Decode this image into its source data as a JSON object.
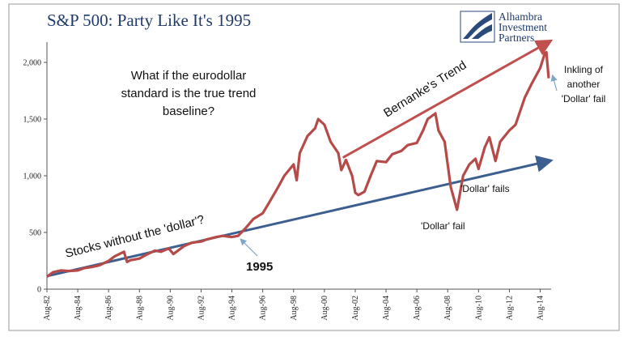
{
  "title": "S&P 500: Party Like It's 1995",
  "logo": {
    "line1": "Alhambra",
    "line2": "Investment",
    "line3": "Partners"
  },
  "annotations": {
    "question": [
      "What if the eurodollar",
      "standard is the true trend",
      "baseline?"
    ],
    "bernanke": "Bernanke's Trend",
    "stocks": "Stocks without the 'dollar'?",
    "year": "1995",
    "fails": "'Dollar' fails",
    "fail": "'Dollar' fail",
    "inkling": [
      "Inkling of",
      "another",
      "'Dollar' fail"
    ]
  },
  "colors": {
    "series": "#b64a48",
    "trend_low": "#3c5f8f",
    "trend_high": "#c0504d",
    "pointer_arrow": "#7fa6c9",
    "title": "#1f3a6b"
  },
  "chart_data": {
    "type": "line",
    "title": "S&P 500: Party Like It's 1995",
    "xlabel": "",
    "ylabel": "",
    "xlim": [
      1982.6,
      2015.15
    ],
    "ylim": [
      0,
      2250
    ],
    "yticks": [
      0,
      500,
      1000,
      1500,
      2000
    ],
    "ytick_labels": [
      "0",
      "500",
      "1,000",
      "1,500",
      "2,000"
    ],
    "xticks": [
      1982.6,
      1984.6,
      1986.6,
      1988.6,
      1990.6,
      1992.6,
      1994.6,
      1996.6,
      1998.6,
      2000.6,
      2002.6,
      2004.6,
      2006.6,
      2008.6,
      2010.6,
      2012.6,
      2014.6
    ],
    "xtick_labels": [
      "Aug-82",
      "Aug-84",
      "Aug-86",
      "Aug-88",
      "Aug-90",
      "Aug-92",
      "Aug-94",
      "Aug-96",
      "Aug-98",
      "Aug-00",
      "Aug-02",
      "Aug-04",
      "Aug-06",
      "Aug-08",
      "Aug-10",
      "Aug-12",
      "Aug-14"
    ],
    "grid": false,
    "legend": "none",
    "series": [
      {
        "x": [
          1982.6,
          1983.0,
          1983.5,
          1984.0,
          1984.6,
          1985.0,
          1985.5,
          1986.0,
          1986.6,
          1987.0,
          1987.6,
          1987.8,
          1988.0,
          1988.6,
          1989.0,
          1989.6,
          1990.0,
          1990.5,
          1990.8,
          1991.0,
          1991.5,
          1992.0,
          1992.6,
          1993.0,
          1993.6,
          1994.0,
          1994.6,
          1995.0,
          1995.5,
          1996.0,
          1996.6,
          1997.0,
          1997.6,
          1998.0,
          1998.6,
          1998.8,
          1999.0,
          1999.5,
          2000.0,
          2000.2,
          2000.6,
          2001.0,
          2001.5,
          2001.7,
          2002.0,
          2002.4,
          2002.6,
          2002.8,
          2003.2,
          2003.6,
          2004.0,
          2004.6,
          2005.0,
          2005.6,
          2006.0,
          2006.6,
          2007.0,
          2007.3,
          2007.8,
          2008.0,
          2008.4,
          2008.8,
          2009.2,
          2009.6,
          2010.0,
          2010.4,
          2010.6,
          2011.0,
          2011.3,
          2011.7,
          2012.0,
          2012.6,
          2013.0,
          2013.6,
          2014.0,
          2014.6,
          2014.9,
          2015.0,
          2015.15
        ],
        "values": [
          110,
          150,
          165,
          160,
          165,
          185,
          195,
          210,
          250,
          290,
          330,
          240,
          255,
          270,
          300,
          340,
          330,
          360,
          310,
          330,
          380,
          410,
          420,
          440,
          460,
          470,
          460,
          470,
          540,
          620,
          670,
          760,
          900,
          1000,
          1100,
          960,
          1200,
          1350,
          1420,
          1500,
          1450,
          1300,
          1200,
          1050,
          1140,
          1000,
          850,
          830,
          860,
          1000,
          1130,
          1120,
          1190,
          1220,
          1270,
          1290,
          1400,
          1500,
          1550,
          1400,
          1300,
          900,
          700,
          1000,
          1100,
          1150,
          1060,
          1250,
          1340,
          1130,
          1300,
          1400,
          1450,
          1690,
          1800,
          1950,
          2080,
          2090,
          1860
        ]
      }
    ],
    "trend_lines": [
      {
        "name": "Stocks without the 'dollar'?",
        "x": [
          1982.6,
          2015.15
        ],
        "values": [
          115,
          1130
        ]
      },
      {
        "name": "Bernanke's Trend",
        "x": [
          2001.8,
          2015.15
        ],
        "values": [
          1160,
          2180
        ]
      }
    ]
  }
}
